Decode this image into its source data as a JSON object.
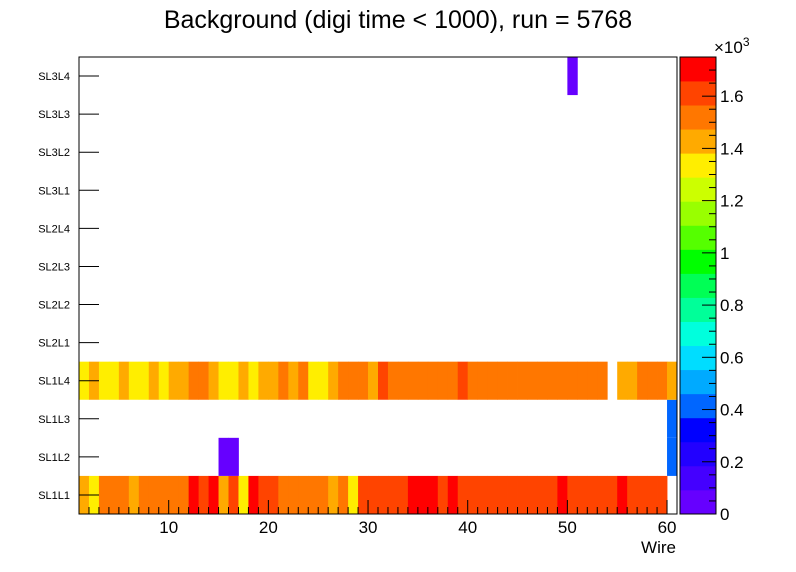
{
  "chart_data": {
    "type": "heatmap",
    "title": "Background (digi time < 1000), run = 5768",
    "xlabel": "Wire",
    "ylabel": "",
    "xlim": [
      1,
      61
    ],
    "x_ticks": [
      "10",
      "20",
      "30",
      "40",
      "50",
      "60"
    ],
    "y_categories": [
      "SL1L1",
      "SL1L2",
      "SL1L3",
      "SL1L4",
      "SL2L1",
      "SL2L2",
      "SL2L3",
      "SL2L4",
      "SL3L1",
      "SL3L2",
      "SL3L3",
      "SL3L4"
    ],
    "z_range": [
      0,
      1750
    ],
    "z_multiplier_label": "×10",
    "z_multiplier_exponent": "3",
    "z_ticks": [
      "0",
      "0.2",
      "0.4",
      "0.6",
      "0.8",
      "1",
      "1.2",
      "1.4",
      "1.6"
    ],
    "palette": [
      "#6600ff",
      "#4400ff",
      "#2200ff",
      "#0000ff",
      "#0066ff",
      "#00aaff",
      "#00ddff",
      "#00ffdd",
      "#00ff99",
      "#00ff55",
      "#00ff00",
      "#55ff00",
      "#99ff00",
      "#ccff00",
      "#ffee00",
      "#ffaa00",
      "#ff7700",
      "#ff4400",
      "#ff0000"
    ],
    "rows": [
      {
        "layer": "SL1L1",
        "values": [
          1400,
          1350,
          1550,
          1500,
          1550,
          1450,
          1500,
          1500,
          1500,
          1550,
          1550,
          1700,
          1600,
          1700,
          1450,
          1650,
          1350,
          1700,
          1600,
          1650,
          1550,
          1550,
          1550,
          1550,
          1500,
          1450,
          1550,
          1350,
          1650,
          1650,
          1650,
          1650,
          1650,
          1700,
          1700,
          1700,
          1650,
          1700,
          1650,
          1650,
          1650,
          1650,
          1650,
          1650,
          1650,
          1650,
          1650,
          1650,
          1700,
          1650,
          1650,
          1650,
          1650,
          1650,
          1700,
          1650,
          1650,
          1650,
          1650,
          null
        ]
      },
      {
        "layer": "SL1L2",
        "values": [
          null,
          null,
          null,
          null,
          null,
          null,
          null,
          null,
          null,
          null,
          null,
          null,
          null,
          null,
          50,
          50,
          null,
          null,
          null,
          null,
          null,
          null,
          null,
          null,
          null,
          null,
          null,
          null,
          null,
          null,
          null,
          null,
          null,
          null,
          null,
          null,
          null,
          null,
          null,
          null,
          null,
          null,
          null,
          null,
          null,
          null,
          null,
          null,
          null,
          null,
          null,
          null,
          null,
          null,
          null,
          null,
          null,
          null,
          null,
          450
        ]
      },
      {
        "layer": "SL1L3",
        "values": [
          null,
          null,
          null,
          null,
          null,
          null,
          null,
          null,
          null,
          null,
          null,
          null,
          null,
          null,
          null,
          null,
          null,
          null,
          null,
          null,
          null,
          null,
          null,
          null,
          null,
          null,
          null,
          null,
          null,
          null,
          null,
          null,
          null,
          null,
          null,
          null,
          null,
          null,
          null,
          null,
          null,
          null,
          null,
          null,
          null,
          null,
          null,
          null,
          null,
          null,
          null,
          null,
          null,
          null,
          null,
          null,
          null,
          null,
          null,
          450
        ]
      },
      {
        "layer": "SL1L4",
        "values": [
          1350,
          1450,
          1350,
          1350,
          1450,
          1350,
          1350,
          1450,
          1350,
          1450,
          1400,
          1550,
          1550,
          1400,
          1350,
          1300,
          1450,
          1350,
          1450,
          1450,
          1500,
          1450,
          1550,
          1350,
          1350,
          1450,
          1550,
          1550,
          1550,
          1450,
          1600,
          1550,
          1550,
          1550,
          1550,
          1550,
          1550,
          1500,
          1600,
          1550,
          1550,
          1550,
          1550,
          1550,
          1550,
          1550,
          1550,
          1550,
          1500,
          1550,
          1550,
          1550,
          1500,
          null,
          1400,
          1450,
          1550,
          1550,
          1500,
          1400
        ]
      },
      {
        "layer": "SL2L1",
        "values": []
      },
      {
        "layer": "SL2L2",
        "values": []
      },
      {
        "layer": "SL2L3",
        "values": []
      },
      {
        "layer": "SL2L4",
        "values": []
      },
      {
        "layer": "SL3L1",
        "values": []
      },
      {
        "layer": "SL3L2",
        "values": []
      },
      {
        "layer": "SL3L3",
        "values": []
      },
      {
        "layer": "SL3L4",
        "values": [
          null,
          null,
          null,
          null,
          null,
          null,
          null,
          null,
          null,
          null,
          null,
          null,
          null,
          null,
          null,
          null,
          null,
          null,
          null,
          null,
          null,
          null,
          null,
          null,
          null,
          null,
          null,
          null,
          null,
          null,
          null,
          null,
          null,
          null,
          null,
          null,
          null,
          null,
          null,
          null,
          null,
          null,
          null,
          null,
          null,
          null,
          null,
          null,
          null,
          50,
          null,
          null,
          null,
          null,
          null,
          null,
          null,
          null,
          null,
          null
        ]
      }
    ]
  }
}
